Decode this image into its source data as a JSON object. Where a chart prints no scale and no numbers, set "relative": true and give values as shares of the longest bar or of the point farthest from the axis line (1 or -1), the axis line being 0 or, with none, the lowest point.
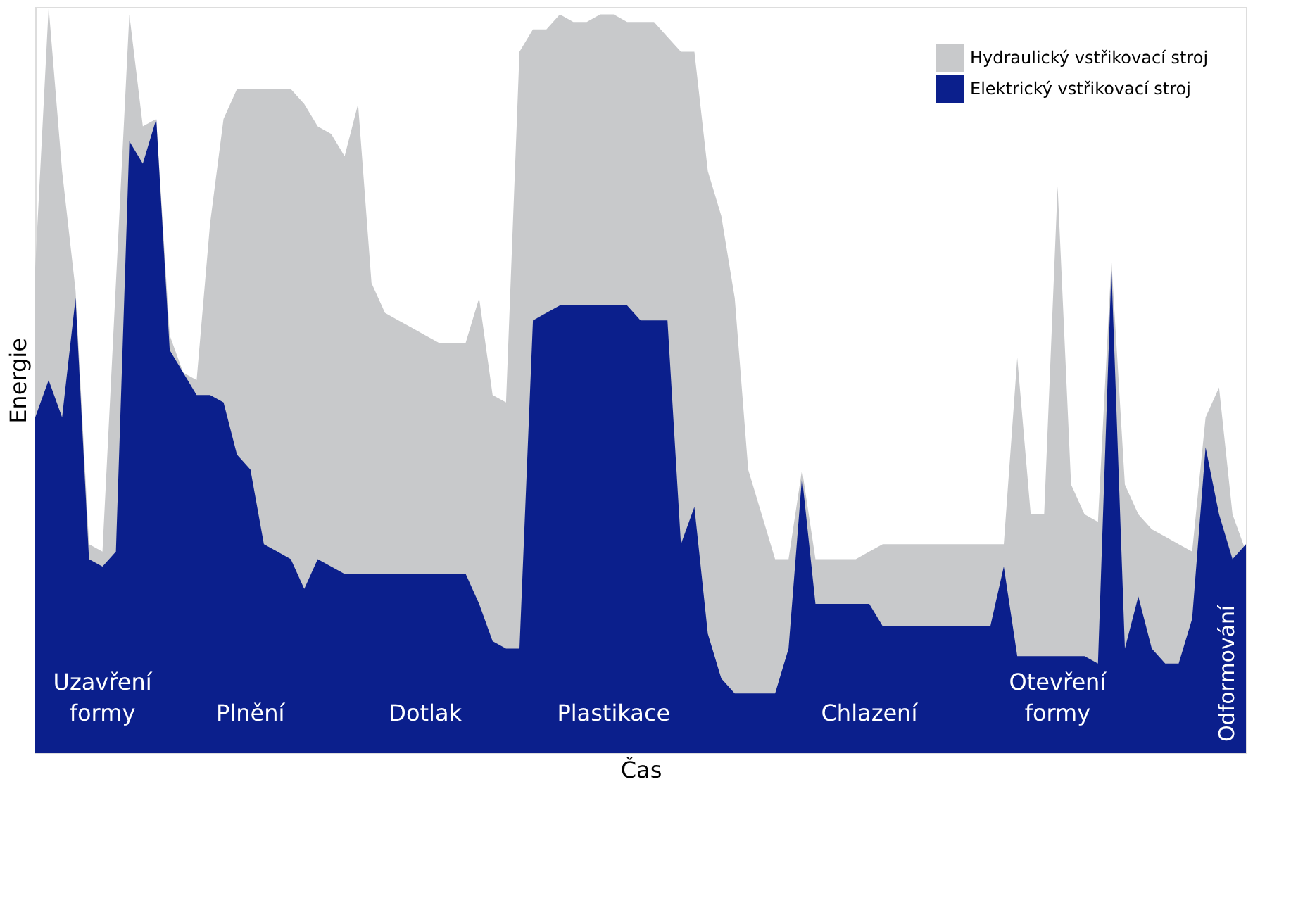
{
  "chart_data": {
    "type": "area",
    "relative": true,
    "xlabel": "Čas",
    "ylabel": "Energie",
    "legend": "top right",
    "categories": [
      null,
      null,
      null,
      null,
      null,
      null,
      null,
      null,
      null,
      null,
      null,
      null,
      null,
      null,
      null,
      null,
      null,
      null,
      null,
      null,
      null,
      null,
      null,
      null,
      null,
      null,
      null,
      null,
      null,
      null,
      null,
      null,
      null,
      null,
      null,
      null,
      null,
      null,
      null,
      null,
      null,
      null,
      null,
      null,
      null,
      null,
      null,
      null,
      null,
      null,
      null,
      null,
      null,
      null,
      null,
      null,
      null,
      null,
      null,
      null,
      null,
      null,
      null,
      null,
      null,
      null,
      null,
      null,
      null,
      null,
      null,
      null,
      null,
      null,
      null,
      null,
      null,
      null,
      null,
      null,
      null,
      null,
      null,
      null,
      null,
      null,
      null,
      null,
      null,
      null,
      null
    ],
    "series": [
      {
        "name": "Hydraulický vstřikovací stroj",
        "color": "#c8c9cb",
        "values": [
          0.65,
          1.0,
          0.78,
          0.62,
          0.28,
          0.27,
          0.63,
          0.99,
          0.84,
          0.85,
          0.56,
          0.51,
          0.5,
          0.71,
          0.85,
          0.89,
          0.89,
          0.89,
          0.89,
          0.89,
          0.87,
          0.84,
          0.83,
          0.8,
          0.87,
          0.63,
          0.59,
          0.58,
          0.57,
          0.56,
          0.55,
          0.55,
          0.55,
          0.61,
          0.48,
          0.47,
          0.94,
          0.97,
          0.97,
          0.99,
          0.98,
          0.98,
          0.99,
          0.99,
          0.98,
          0.98,
          0.98,
          0.96,
          0.94,
          0.94,
          0.78,
          0.72,
          0.61,
          0.38,
          0.32,
          0.26,
          0.26,
          0.38,
          0.26,
          0.26,
          0.26,
          0.26,
          0.27,
          0.28,
          0.28,
          0.28,
          0.28,
          0.28,
          0.28,
          0.28,
          0.28,
          0.28,
          0.28,
          0.53,
          0.32,
          0.32,
          0.76,
          0.36,
          0.32,
          0.31,
          0.66,
          0.36,
          0.32,
          0.3,
          0.29,
          0.28,
          0.27,
          0.45,
          0.49,
          0.32,
          0.27
        ]
      },
      {
        "name": "Elektrický vstřikovací stroj",
        "color": "#0b1f8c",
        "values": [
          0.45,
          0.5,
          0.45,
          0.61,
          0.26,
          0.25,
          0.27,
          0.82,
          0.79,
          0.85,
          0.54,
          0.51,
          0.48,
          0.48,
          0.47,
          0.4,
          0.38,
          0.28,
          0.27,
          0.26,
          0.22,
          0.26,
          0.25,
          0.24,
          0.24,
          0.24,
          0.24,
          0.24,
          0.24,
          0.24,
          0.24,
          0.24,
          0.24,
          0.2,
          0.15,
          0.14,
          0.14,
          0.58,
          0.59,
          0.6,
          0.6,
          0.6,
          0.6,
          0.6,
          0.6,
          0.58,
          0.58,
          0.58,
          0.28,
          0.33,
          0.16,
          0.1,
          0.08,
          0.08,
          0.08,
          0.08,
          0.14,
          0.37,
          0.2,
          0.2,
          0.2,
          0.2,
          0.2,
          0.17,
          0.17,
          0.17,
          0.17,
          0.17,
          0.17,
          0.17,
          0.17,
          0.17,
          0.25,
          0.13,
          0.13,
          0.13,
          0.13,
          0.13,
          0.13,
          0.12,
          0.65,
          0.14,
          0.21,
          0.14,
          0.12,
          0.12,
          0.18,
          0.41,
          0.32,
          0.26,
          0.28
        ]
      }
    ],
    "annotations": [
      "Uzavření formy",
      "Plnění",
      "Dotlak",
      "Plastikace",
      "Chlazení",
      "Otevření formy",
      "Odformování"
    ]
  }
}
